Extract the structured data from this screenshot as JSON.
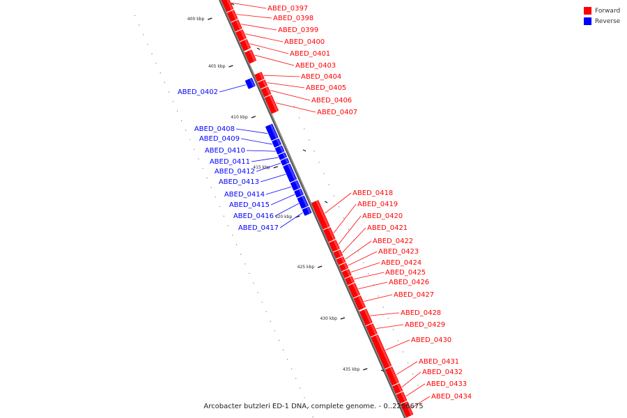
{
  "legend": [
    {
      "label": "Forward",
      "color": "#ff0000"
    },
    {
      "label": "Reverse",
      "color": "#0000ff"
    }
  ],
  "footer": "Arcobacter butzleri ED-1 DNA, complete genome. - 0..2256675",
  "axis": {
    "unit": "kbp",
    "ticks": [
      400,
      405,
      410,
      415,
      420,
      425,
      430,
      435
    ]
  },
  "colors": {
    "forward": "#ff0000",
    "reverse": "#0000ff",
    "backbone": "#888888"
  },
  "forward_genes": [
    "ABED_0397",
    "ABED_0398",
    "ABED_0399",
    "ABED_0400",
    "ABED_0401",
    "ABED_0403",
    "ABED_0404",
    "ABED_0405",
    "ABED_0406",
    "ABED_0407",
    "ABED_0418",
    "ABED_0419",
    "ABED_0420",
    "ABED_0421",
    "ABED_0422",
    "ABED_0423",
    "ABED_0424",
    "ABED_0425",
    "ABED_0426",
    "ABED_0427",
    "ABED_0428",
    "ABED_0429",
    "ABED_0430",
    "ABED_0431",
    "ABED_0432",
    "ABED_0433",
    "ABED_0434"
  ],
  "reverse_genes": [
    "ABED_0402",
    "ABED_0408",
    "ABED_0409",
    "ABED_0410",
    "ABED_0411",
    "ABED_0412",
    "ABED_0413",
    "ABED_0414",
    "ABED_0415",
    "ABED_0416",
    "ABED_0417"
  ]
}
